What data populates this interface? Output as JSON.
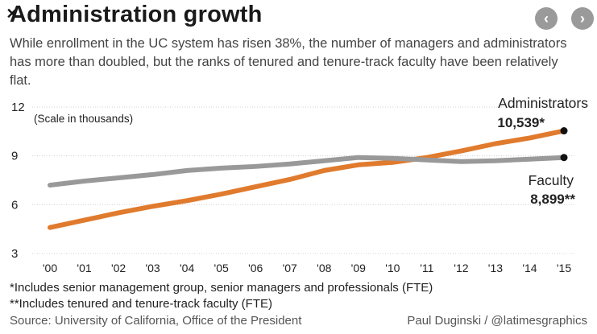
{
  "header": {
    "title": "Administration growth",
    "subtitle": "While enrollment in the UC system has risen 38%, the number of managers and administrators has more than doubled, but the ranks of tenured and tenure-track faculty have been relatively flat."
  },
  "nav": {
    "prev_label": "‹",
    "next_label": "›",
    "close_label": "✕"
  },
  "chart_data": {
    "type": "line",
    "title": "Administration growth",
    "note": "(Scale in thousands)",
    "categories": [
      "'00",
      "'01",
      "'02",
      "'03",
      "'04",
      "'05",
      "'06",
      "'07",
      "'08",
      "'09",
      "'10",
      "'11",
      "'12",
      "'13",
      "'14",
      "'15"
    ],
    "ylim": [
      3,
      12
    ],
    "yticks": [
      3,
      6,
      9,
      12
    ],
    "series": [
      {
        "name": "Administrators",
        "values": [
          4.6,
          5.05,
          5.5,
          5.9,
          6.25,
          6.65,
          7.1,
          7.55,
          8.1,
          8.45,
          8.6,
          8.9,
          9.3,
          9.75,
          10.1,
          10.539
        ],
        "end_label": "10,539*",
        "color": "#e07b2e"
      },
      {
        "name": "Faculty",
        "values": [
          7.2,
          7.45,
          7.65,
          7.85,
          8.1,
          8.25,
          8.35,
          8.5,
          8.7,
          8.9,
          8.85,
          8.75,
          8.65,
          8.7,
          8.8,
          8.899
        ],
        "end_label": "8,899**",
        "color": "#999999"
      }
    ]
  },
  "footer": {
    "footnote1": "*Includes senior management group, senior managers and professionals (FTE)",
    "footnote2": "**Includes tenured and tenure-track faculty (FTE)",
    "source": "Source: University of California, Office of the President",
    "credit": "Paul Duginski / @latimesgraphics"
  }
}
